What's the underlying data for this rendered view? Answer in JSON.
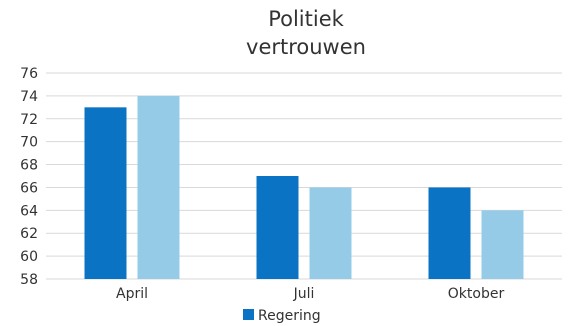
{
  "chart_data": {
    "type": "bar",
    "title_lines": [
      "Politiek",
      "vertrouwen"
    ],
    "categories": [
      "April",
      "Juli",
      "Oktober"
    ],
    "series": [
      {
        "name": "Regering",
        "values": [
          73,
          67,
          66
        ],
        "color": "#0a73c4"
      },
      {
        "values": [
          74,
          66,
          64
        ],
        "color": "#96cbe8"
      }
    ],
    "ylim": [
      58,
      76
    ],
    "yticks": [
      58,
      60,
      62,
      64,
      66,
      68,
      70,
      72,
      74,
      76
    ],
    "grid": true,
    "legend_position": "bottom"
  }
}
